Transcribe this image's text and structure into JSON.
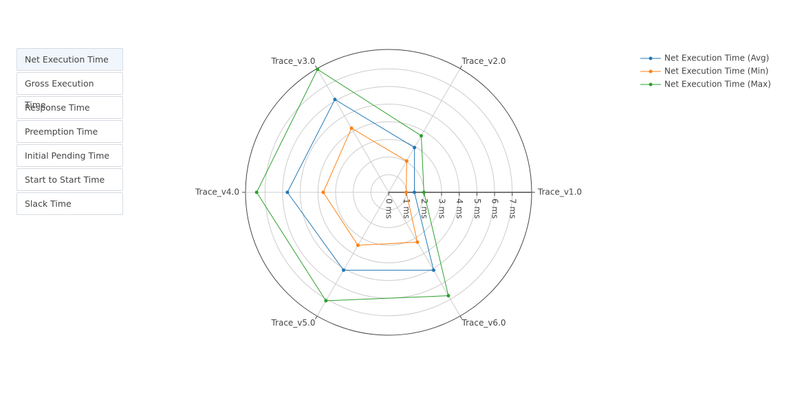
{
  "buttons": [
    "Net Execution Time",
    "Gross Execution Time",
    "Response Time",
    "Preemption Time",
    "Initial Pending Time",
    "Start to Start Time",
    "Slack Time"
  ],
  "chart_data": {
    "type": "radar",
    "categories": [
      "Trace_v1.0",
      "Trace_v2.0",
      "Trace_v3.0",
      "Trace_v4.0",
      "Trace_v5.0",
      "Trace_v6.0"
    ],
    "series": [
      {
        "name": "Net Execution Time (Avg)",
        "color": "#1f77b4",
        "values": [
          1.46,
          2.93,
          6.08,
          5.73,
          5.1,
          5.1
        ]
      },
      {
        "name": "Net Execution Time (Min)",
        "color": "#ff7f0e",
        "values": [
          1.0,
          2.05,
          4.2,
          3.7,
          3.47,
          3.26
        ]
      },
      {
        "name": "Net Execution Time (Max)",
        "color": "#2ca02c",
        "values": [
          2.0,
          3.7,
          8.05,
          7.47,
          7.1,
          6.77
        ]
      }
    ],
    "rlim": [
      0,
      8.1
    ],
    "rticks": [
      {
        "value": 0,
        "label": "0 ms"
      },
      {
        "value": 1,
        "label": "1 ms"
      },
      {
        "value": 2,
        "label": "2 ms"
      },
      {
        "value": 3,
        "label": "3 ms"
      },
      {
        "value": 4,
        "label": "4 ms"
      },
      {
        "value": 5,
        "label": "5 ms"
      },
      {
        "value": 6,
        "label": "6 ms"
      },
      {
        "value": 7,
        "label": "7 ms"
      }
    ],
    "grid": true
  }
}
